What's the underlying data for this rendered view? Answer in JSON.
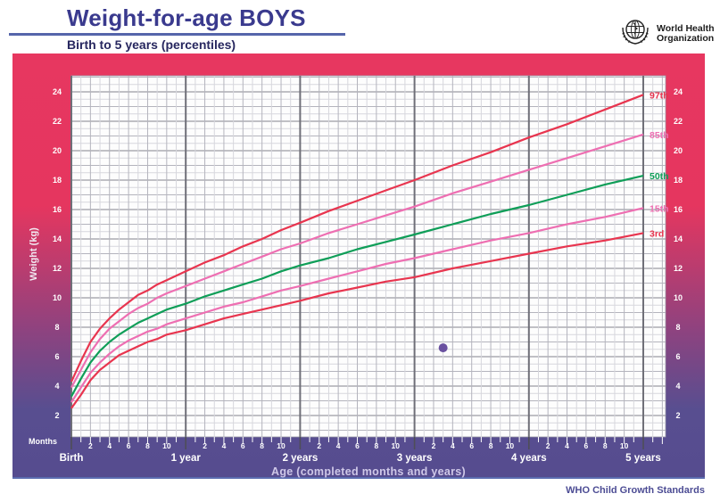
{
  "header": {
    "title": "Weight-for-age BOYS",
    "subtitle": "Birth to 5 years (percentiles)",
    "logo": {
      "line1": "World Health",
      "line2": "Organization"
    }
  },
  "footer": {
    "credit": "WHO Child Growth Standards"
  },
  "colors": {
    "accent_crimson": "#e73760",
    "accent_purple": "#564c8f",
    "percentile_red": "#e8354f",
    "percentile_pink": "#ee6fb2",
    "percentile_green": "#0f9e58",
    "point_purple": "#6a51a0",
    "grid_light": "#d7d7dd",
    "grid_medium": "#b4b4bd",
    "grid_year": "#6f6f78"
  },
  "chart_data": {
    "type": "line",
    "title": "Weight-for-age BOYS — Birth to 5 years (percentiles)",
    "xlabel": "Age (completed months and years)",
    "ylabel": "Weight (kg)",
    "x_axis_unit_label": "Months",
    "grid": true,
    "x_range_months": [
      0,
      62
    ],
    "ylim_kg": [
      0.5,
      25
    ],
    "y_tick_labels": [
      2,
      4,
      6,
      8,
      10,
      12,
      14,
      16,
      18,
      20,
      22,
      24
    ],
    "x_year_labels": [
      "Birth",
      "1 year",
      "2 years",
      "3 years",
      "4 years",
      "5 years"
    ],
    "x_month_minor_labels": [
      2,
      4,
      6,
      8,
      10
    ],
    "legend_position": "right of curve ends",
    "x": [
      0,
      1,
      2,
      3,
      4,
      5,
      6,
      7,
      8,
      9,
      10,
      12,
      14,
      16,
      18,
      20,
      22,
      24,
      27,
      30,
      33,
      36,
      40,
      44,
      48,
      52,
      56,
      60
    ],
    "series": [
      {
        "name": "97th",
        "color": "#e8354f",
        "values": [
          4.3,
          5.7,
          7.0,
          7.9,
          8.6,
          9.2,
          9.7,
          10.2,
          10.5,
          10.9,
          11.2,
          11.8,
          12.4,
          12.9,
          13.5,
          14.0,
          14.6,
          15.1,
          15.9,
          16.6,
          17.3,
          18.0,
          19.0,
          19.9,
          20.9,
          21.8,
          22.8,
          23.8
        ]
      },
      {
        "name": "85th",
        "color": "#ee6fb2",
        "values": [
          3.9,
          5.1,
          6.3,
          7.2,
          7.9,
          8.4,
          8.9,
          9.3,
          9.6,
          10.0,
          10.3,
          10.8,
          11.3,
          11.8,
          12.3,
          12.8,
          13.3,
          13.7,
          14.4,
          15.0,
          15.6,
          16.2,
          17.1,
          17.9,
          18.7,
          19.5,
          20.3,
          21.1
        ]
      },
      {
        "name": "50th",
        "color": "#0f9e58",
        "values": [
          3.3,
          4.5,
          5.6,
          6.4,
          7.0,
          7.5,
          7.9,
          8.3,
          8.6,
          8.9,
          9.2,
          9.6,
          10.1,
          10.5,
          10.9,
          11.3,
          11.8,
          12.2,
          12.7,
          13.3,
          13.8,
          14.3,
          15.0,
          15.7,
          16.3,
          17.0,
          17.7,
          18.3
        ]
      },
      {
        "name": "15th",
        "color": "#ee6fb2",
        "values": [
          2.9,
          3.9,
          4.9,
          5.6,
          6.2,
          6.7,
          7.1,
          7.4,
          7.7,
          7.9,
          8.2,
          8.6,
          9.0,
          9.4,
          9.7,
          10.1,
          10.5,
          10.8,
          11.3,
          11.8,
          12.3,
          12.7,
          13.3,
          13.9,
          14.4,
          15.0,
          15.5,
          16.1
        ]
      },
      {
        "name": "3rd",
        "color": "#e8354f",
        "values": [
          2.5,
          3.4,
          4.4,
          5.1,
          5.6,
          6.1,
          6.4,
          6.7,
          7.0,
          7.2,
          7.5,
          7.8,
          8.2,
          8.6,
          8.9,
          9.2,
          9.5,
          9.8,
          10.3,
          10.7,
          11.1,
          11.4,
          12.0,
          12.5,
          13.0,
          13.5,
          13.9,
          14.4
        ]
      }
    ],
    "plotted_point": {
      "age_months": 39,
      "weight_kg": 6.6,
      "color": "#6a51a0"
    }
  }
}
